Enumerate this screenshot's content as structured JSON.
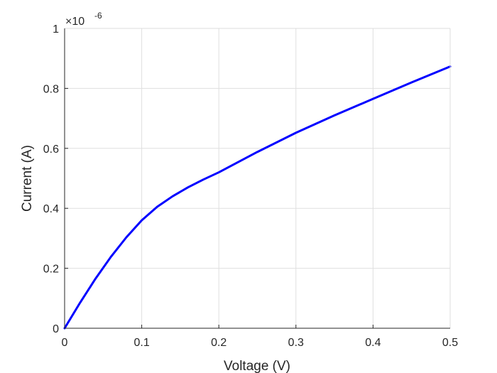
{
  "chart_data": {
    "type": "line",
    "title": "",
    "xlabel": "Voltage (V)",
    "ylabel": "Current (A)",
    "xlim": [
      0,
      0.5
    ],
    "ylim": [
      0,
      1
    ],
    "y_exponent_label": "×10",
    "y_exponent_power": "-6",
    "grid": true,
    "x_ticks": [
      "0",
      "0.1",
      "0.2",
      "0.3",
      "0.4",
      "0.5"
    ],
    "y_ticks": [
      "0",
      "0.2",
      "0.4",
      "0.6",
      "0.8",
      "1"
    ],
    "series": [
      {
        "color": "#0000ff",
        "x": [
          0,
          0.02,
          0.04,
          0.06,
          0.08,
          0.1,
          0.12,
          0.14,
          0.16,
          0.18,
          0.2,
          0.25,
          0.3,
          0.35,
          0.4,
          0.45,
          0.5
        ],
        "y": [
          0,
          0.085,
          0.165,
          0.238,
          0.303,
          0.36,
          0.405,
          0.44,
          0.47,
          0.496,
          0.52,
          0.588,
          0.652,
          0.71,
          0.765,
          0.82,
          0.873
        ]
      }
    ]
  }
}
